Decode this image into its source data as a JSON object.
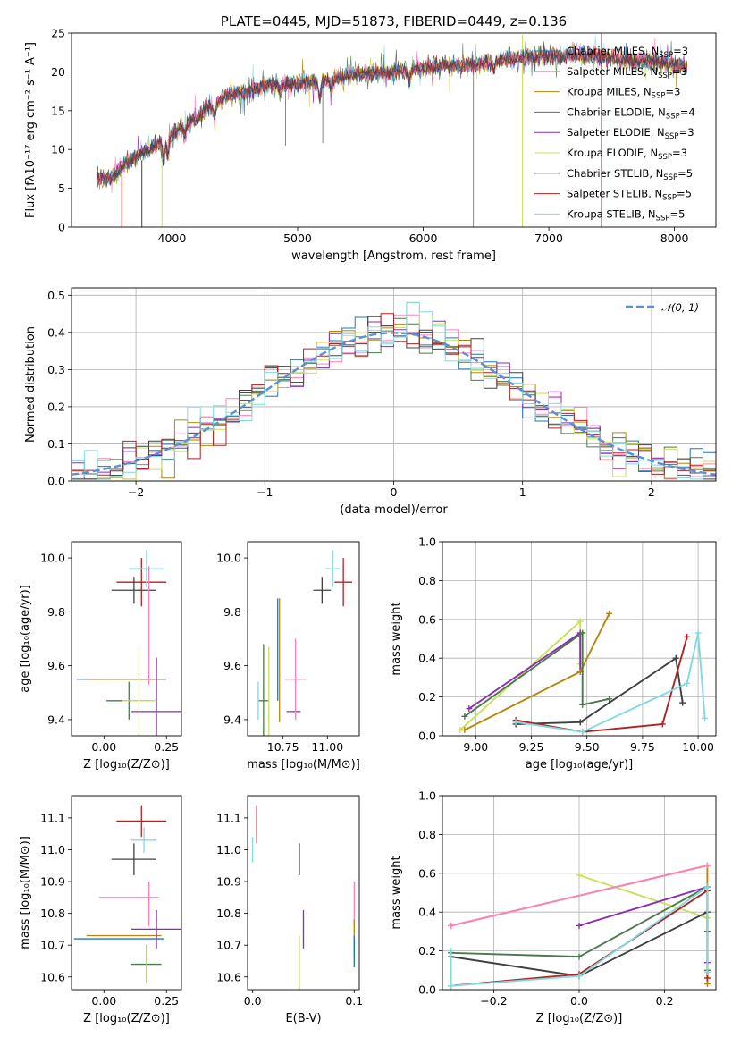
{
  "chart_data": [
    {
      "id": "spectrum",
      "type": "line",
      "title": "PLATE=0445, MJD=51873, FIBERID=0449, z=0.136",
      "xlabel": "wavelength [Angstrom, rest frame]",
      "ylabel": "Flux [fλ10⁻¹⁷ erg cm⁻² s⁻¹ A⁻¹]",
      "xlim": [
        3200,
        8330
      ],
      "ylim": [
        0,
        25
      ],
      "xticks": [
        4000,
        5000,
        6000,
        7000,
        8000
      ],
      "yticks": [
        0,
        5,
        10,
        15,
        20,
        25
      ],
      "grid": false,
      "legend_position": "top-right",
      "continuum": {
        "x": [
          3400,
          3500,
          3650,
          3800,
          3950,
          4050,
          4150,
          4300,
          4450,
          4600,
          4800,
          5000,
          5200,
          5400,
          5600,
          5800,
          6000,
          6200,
          6400,
          6600,
          6800,
          7000,
          7200,
          7400,
          7600,
          7800,
          8000,
          8100
        ],
        "y": [
          6.5,
          6.2,
          8.5,
          10.0,
          11.0,
          12.5,
          13.5,
          15.5,
          17.0,
          17.5,
          18.5,
          18.5,
          18.8,
          19.5,
          19.8,
          20.0,
          20.5,
          20.8,
          21.0,
          21.5,
          21.8,
          22.0,
          22.2,
          22.0,
          21.5,
          21.3,
          21.0,
          20.7
        ]
      },
      "series": [
        {
          "name": "Chabrier MILES, N_SSP=3",
          "label_main": "Chabrier MILES, N",
          "label_sub": "SSP",
          "label_end": "=3",
          "color": "#1f77b4"
        },
        {
          "name": "Salpeter MILES, N_SSP=3",
          "label_main": "Salpeter MILES, N",
          "label_sub": "SSP",
          "label_end": "=3",
          "color": "#ff7fbf"
        },
        {
          "name": "Kroupa MILES, N_SSP=3",
          "label_main": "Kroupa MILES, N",
          "label_sub": "SSP",
          "label_end": "=3",
          "color": "#b8860b"
        },
        {
          "name": "Chabrier ELODIE, N_SSP=4",
          "label_main": "Chabrier ELODIE, N",
          "label_sub": "SSP",
          "label_end": "=4",
          "color": "#4a7a4a"
        },
        {
          "name": "Salpeter ELODIE, N_SSP=3",
          "label_main": "Salpeter ELODIE, N",
          "label_sub": "SSP",
          "label_end": "=3",
          "color": "#8b2bb8"
        },
        {
          "name": "Kroupa ELODIE, N_SSP=3",
          "label_main": "Kroupa ELODIE, N",
          "label_sub": "SSP",
          "label_end": "=3",
          "color": "#c8e05a"
        },
        {
          "name": "Chabrier STELIB, N_SSP=5",
          "label_main": "Chabrier STELIB, N",
          "label_sub": "SSP",
          "label_end": "=5",
          "color": "#404040"
        },
        {
          "name": "Salpeter STELIB, N_SSP=5",
          "label_main": "Salpeter STELIB, N",
          "label_sub": "SSP",
          "label_end": "=5",
          "color": "#b22222"
        },
        {
          "name": "Kroupa STELIB, N_SSP=5",
          "label_main": "Kroupa STELIB, N",
          "label_sub": "SSP",
          "label_end": "=5",
          "color": "#7fdbdf"
        }
      ],
      "model_edges": [
        {
          "series": 7,
          "x_start": 3600,
          "x_end": 7420
        },
        {
          "series": 5,
          "x_start": 3920,
          "x_end": 6790
        },
        {
          "series": 6,
          "x_start": 3760,
          "x_end": 7420
        }
      ]
    },
    {
      "id": "residuals",
      "type": "histogram",
      "xlabel": "(data-model)/error",
      "ylabel": "Normed distribution",
      "xlim": [
        -2.5,
        2.5
      ],
      "ylim": [
        0,
        0.52
      ],
      "xticks": [
        -2,
        -1,
        0,
        1,
        2
      ],
      "yticks": [
        0.0,
        0.1,
        0.2,
        0.3,
        0.4,
        0.5
      ],
      "grid": true,
      "legend_position": "top-right",
      "legend_label": "𝒩(0, 1)",
      "normal_curve": {
        "mean": 0,
        "sigma": 1,
        "color": "#5b8fd6"
      },
      "bin_width": 0.1
    },
    {
      "id": "age_vs_Z",
      "type": "scatter",
      "xlabel": "Z [log₁₀(Z/Z⊙)]",
      "ylabel": "age  [log₁₀(age/yr)]",
      "xlim": [
        -0.13,
        0.31
      ],
      "ylim": [
        9.34,
        10.06
      ],
      "xticks": [
        0.0,
        0.25
      ],
      "yticks": [
        9.4,
        9.6,
        9.8,
        10.0
      ],
      "points": [
        {
          "x": 0.15,
          "y": 9.91,
          "xerr": 0.1,
          "yerr": 0.09,
          "series": 7
        },
        {
          "x": 0.12,
          "y": 9.88,
          "xerr": 0.09,
          "yerr": 0.05,
          "series": 6
        },
        {
          "x": 0.17,
          "y": 9.96,
          "xerr": 0.07,
          "yerr": 0.07,
          "series": 8
        },
        {
          "x": 0.07,
          "y": 9.55,
          "xerr": 0.18,
          "yerr": 0.0,
          "series": 0
        },
        {
          "x": 0.08,
          "y": 9.55,
          "xerr": 0.15,
          "yerr": 0.0,
          "series": 2
        },
        {
          "x": 0.1,
          "y": 9.47,
          "xerr": 0.09,
          "yerr": 0.07,
          "series": 3
        },
        {
          "x": 0.21,
          "y": 9.43,
          "xerr": 0.1,
          "yerr": 0.2,
          "series": 4
        },
        {
          "x": 0.14,
          "y": 9.47,
          "xerr": 0.07,
          "yerr": 0.2,
          "series": 5
        },
        {
          "x": 0.18,
          "y": 9.75,
          "xerr": 0.0,
          "yerr": 0.22,
          "series": 1
        }
      ]
    },
    {
      "id": "age_vs_mass",
      "type": "scatter",
      "xlabel": "mass [log₁₀(M/M⊙)]",
      "ylabel": "",
      "xlim": [
        10.55,
        11.18
      ],
      "ylim": [
        9.34,
        10.06
      ],
      "xticks": [
        10.75,
        11.0
      ],
      "yticks": [
        9.4,
        9.6,
        9.8,
        10.0
      ],
      "points": [
        {
          "x": 11.09,
          "y": 9.91,
          "xerr": 0.05,
          "yerr": 0.09,
          "series": 7
        },
        {
          "x": 10.97,
          "y": 9.88,
          "xerr": 0.05,
          "yerr": 0.05,
          "series": 6
        },
        {
          "x": 11.03,
          "y": 9.96,
          "xerr": 0.04,
          "yerr": 0.07,
          "series": 8
        },
        {
          "x": 10.72,
          "y": 9.66,
          "xerr": 0.0,
          "yerr": 0.19,
          "series": 0
        },
        {
          "x": 10.73,
          "y": 9.62,
          "xerr": 0.0,
          "yerr": 0.23,
          "series": 2
        },
        {
          "x": 10.64,
          "y": 9.47,
          "xerr": 0.03,
          "yerr": 0.21,
          "series": 3
        },
        {
          "x": 10.81,
          "y": 9.43,
          "xerr": 0.04,
          "yerr": 0.0,
          "series": 4
        },
        {
          "x": 10.67,
          "y": 9.47,
          "xerr": 0.0,
          "yerr": 0.2,
          "series": 5
        },
        {
          "x": 10.82,
          "y": 9.55,
          "xerr": 0.06,
          "yerr": 0.15,
          "series": 1
        },
        {
          "x": 10.61,
          "y": 9.47,
          "xerr": 0.0,
          "yerr": 0.07,
          "series": 8
        }
      ]
    },
    {
      "id": "weight_vs_age",
      "type": "line",
      "xlabel": "age  [log₁₀(age/yr)]",
      "ylabel": "mass weight",
      "xlim": [
        8.85,
        10.08
      ],
      "ylim": [
        0,
        1.0
      ],
      "xticks": [
        9.0,
        9.25,
        9.5,
        9.75,
        10.0
      ],
      "yticks": [
        0.0,
        0.2,
        0.4,
        0.6,
        0.8,
        1.0
      ],
      "grid": true,
      "series": [
        {
          "series": 5,
          "x": [
            8.93,
            9.47,
            9.47
          ],
          "y": [
            0.03,
            0.59,
            0.37
          ]
        },
        {
          "series": 4,
          "x": [
            8.97,
            9.47,
            9.47
          ],
          "y": [
            0.14,
            0.53,
            0.33
          ]
        },
        {
          "series": 2,
          "x": [
            8.95,
            9.47,
            9.6
          ],
          "y": [
            0.03,
            0.33,
            0.63
          ]
        },
        {
          "series": 3,
          "x": [
            8.95,
            9.48,
            9.48,
            9.6
          ],
          "y": [
            0.1,
            0.53,
            0.16,
            0.19
          ]
        },
        {
          "series": 6,
          "x": [
            9.18,
            9.47,
            9.9,
            9.93
          ],
          "y": [
            0.06,
            0.07,
            0.4,
            0.17
          ]
        },
        {
          "series": 7,
          "x": [
            9.18,
            9.48,
            9.84,
            9.95
          ],
          "y": [
            0.08,
            0.02,
            0.06,
            0.51
          ]
        },
        {
          "series": 8,
          "x": [
            9.18,
            9.48,
            9.95,
            10.0,
            10.03
          ],
          "y": [
            0.07,
            0.02,
            0.27,
            0.53,
            0.09
          ]
        }
      ]
    },
    {
      "id": "mass_vs_Z",
      "type": "scatter",
      "xlabel": "Z [log₁₀(Z/Z⊙)]",
      "ylabel": "mass [log₁₀(M/M⊙)]",
      "xlim": [
        -0.13,
        0.31
      ],
      "ylim": [
        10.56,
        11.17
      ],
      "xticks": [
        0.0,
        0.25
      ],
      "yticks": [
        10.6,
        10.7,
        10.8,
        10.9,
        11.0,
        11.1
      ],
      "points": [
        {
          "x": 0.15,
          "y": 11.09,
          "xerr": 0.1,
          "yerr": 0.05,
          "series": 7
        },
        {
          "x": 0.16,
          "y": 11.03,
          "xerr": 0.05,
          "yerr": 0.04,
          "series": 8
        },
        {
          "x": 0.12,
          "y": 10.97,
          "xerr": 0.09,
          "yerr": 0.05,
          "series": 6
        },
        {
          "x": 0.1,
          "y": 10.85,
          "xerr": 0.12,
          "yerr": 0.0,
          "series": 1
        },
        {
          "x": 0.06,
          "y": 10.72,
          "xerr": 0.18,
          "yerr": 0.0,
          "series": 0
        },
        {
          "x": 0.08,
          "y": 10.73,
          "xerr": 0.15,
          "yerr": 0.0,
          "series": 2
        },
        {
          "x": 0.21,
          "y": 10.75,
          "xerr": 0.1,
          "yerr": 0.06,
          "series": 4
        },
        {
          "x": 0.17,
          "y": 10.64,
          "xerr": 0.06,
          "yerr": 0.06,
          "series": 3
        },
        {
          "x": 0.17,
          "y": 10.64,
          "xerr": 0.0,
          "yerr": 0.06,
          "series": 5
        },
        {
          "x": 0.18,
          "y": 10.83,
          "xerr": 0.0,
          "yerr": 0.07,
          "series": 1
        }
      ]
    },
    {
      "id": "mass_vs_EBV",
      "type": "scatter",
      "xlabel": "E(B-V)",
      "ylabel": "",
      "xlim": [
        -0.005,
        0.105
      ],
      "ylim": [
        10.56,
        11.17
      ],
      "xticks": [
        0.0,
        0.1
      ],
      "yticks": [
        10.6,
        10.7,
        10.8,
        10.9,
        11.0,
        11.1
      ],
      "points": [
        {
          "x": 0.004,
          "y": 11.08,
          "xerr": 0.0,
          "yerr": 0.06,
          "series": 7
        },
        {
          "x": 0.0,
          "y": 11.0,
          "xerr": 0.0,
          "yerr": 0.04,
          "series": 8
        },
        {
          "x": 0.046,
          "y": 10.97,
          "xerr": 0.0,
          "yerr": 0.05,
          "series": 6
        },
        {
          "x": 0.05,
          "y": 10.75,
          "xerr": 0.0,
          "yerr": 0.06,
          "series": 4
        },
        {
          "x": 0.046,
          "y": 10.64,
          "xerr": 0.0,
          "yerr": 0.09,
          "series": 5
        },
        {
          "x": 0.1,
          "y": 10.83,
          "xerr": 0.0,
          "yerr": 0.07,
          "series": 1
        },
        {
          "x": 0.1,
          "y": 10.72,
          "xerr": 0.0,
          "yerr": 0.06,
          "series": 2
        },
        {
          "x": 0.1,
          "y": 10.68,
          "xerr": 0.0,
          "yerr": 0.05,
          "series": 0
        }
      ]
    },
    {
      "id": "weight_vs_Z",
      "type": "line",
      "xlabel": "Z [log₁₀(Z/Z⊙)]",
      "ylabel": "mass weight",
      "xlim": [
        -0.32,
        0.32
      ],
      "ylim": [
        0,
        1.0
      ],
      "xticks": [
        -0.2,
        0.0,
        0.2
      ],
      "yticks": [
        0.0,
        0.2,
        0.4,
        0.6,
        0.8,
        1.0
      ],
      "grid": true,
      "series": [
        {
          "series": 5,
          "x": [
            0.0,
            0.3,
            0.3
          ],
          "y": [
            0.59,
            0.37,
            0.03
          ]
        },
        {
          "series": 4,
          "x": [
            0.0,
            0.3,
            0.3
          ],
          "y": [
            0.33,
            0.53,
            0.14
          ]
        },
        {
          "series": 2,
          "x": [
            -0.3,
            0.3,
            0.3
          ],
          "y": [
            0.33,
            0.64,
            0.03
          ]
        },
        {
          "series": 1,
          "x": [
            -0.3,
            0.3
          ],
          "y": [
            0.33,
            0.64
          ]
        },
        {
          "series": 3,
          "x": [
            -0.3,
            0.0,
            0.3,
            0.3
          ],
          "y": [
            0.19,
            0.17,
            0.53,
            0.1
          ]
        },
        {
          "series": 6,
          "x": [
            -0.3,
            0.0,
            0.3,
            0.3
          ],
          "y": [
            0.17,
            0.07,
            0.4,
            0.3
          ]
        },
        {
          "series": 7,
          "x": [
            -0.3,
            0.0,
            0.3,
            0.3
          ],
          "y": [
            0.02,
            0.08,
            0.51,
            0.06
          ]
        },
        {
          "series": 8,
          "x": [
            -0.3,
            -0.3,
            0.0,
            0.3,
            0.3
          ],
          "y": [
            0.2,
            0.02,
            0.07,
            0.53,
            0.09
          ]
        }
      ]
    }
  ]
}
